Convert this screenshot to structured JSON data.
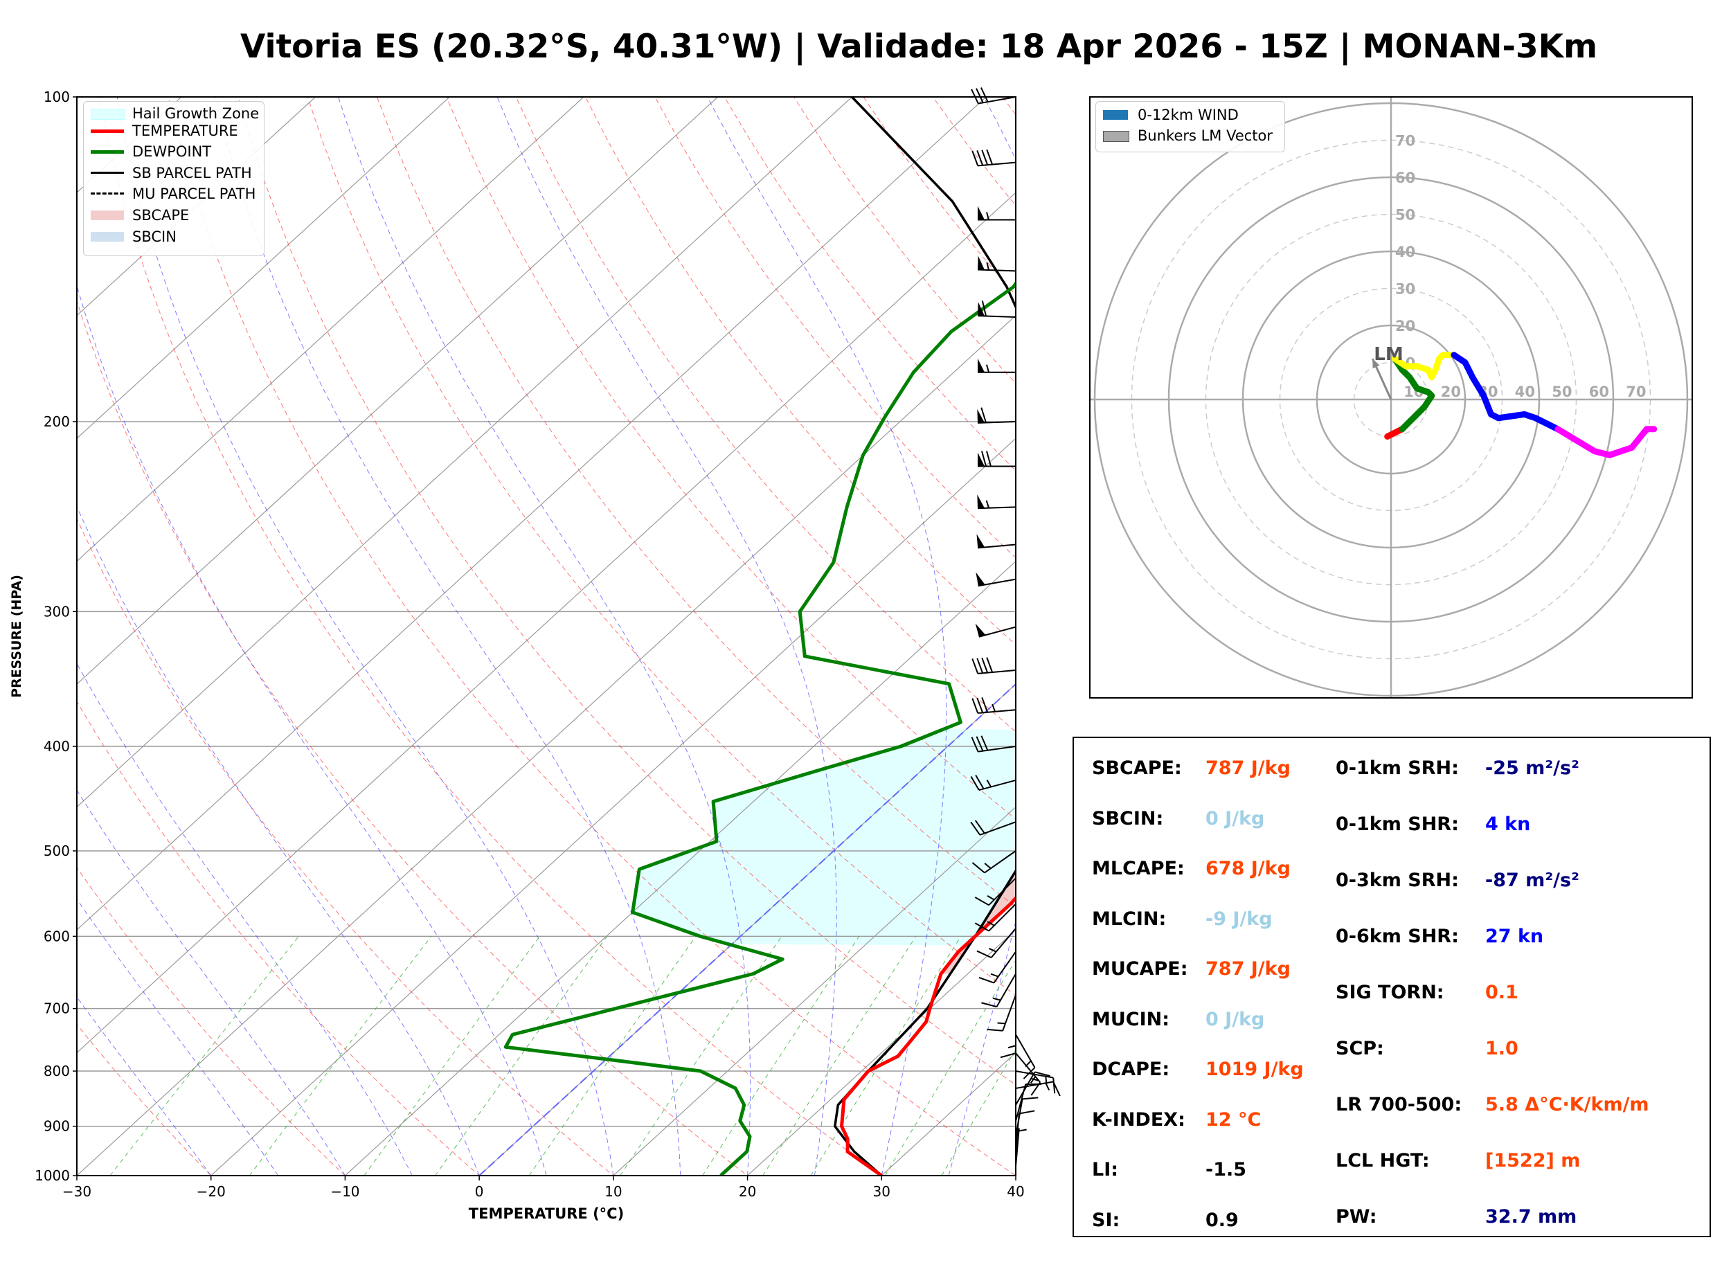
{
  "title": "Vitoria ES (20.32°S, 40.31°W) | Validade: 18 Apr 2026 - 15Z | MONAN-3Km",
  "colors": {
    "temperature": "#ff0000",
    "dewpoint": "#008000",
    "parcel": "#000000",
    "sbcape": "#f4cccc",
    "hail": "#e0ffff",
    "dry_adiabat": "#ff4444",
    "moist_adiabat": "#4444ff",
    "mixing_ratio": "#33aa33",
    "isotherm": "#9a9a9a",
    "freezing": "#6666ff",
    "value_orange": "#ff4500",
    "value_lightblue": "#9fd0e6",
    "value_navy": "#000080",
    "value_blue": "#0000ff",
    "value_black": "#000000"
  },
  "chart_data": [
    {
      "type": "line",
      "subtype": "skew-t log-p",
      "xlabel": "TEMPERATURE (°C)",
      "ylabel": "PRESSURE (HPA)",
      "xlim": [
        -30,
        40
      ],
      "ylim": [
        1000,
        100
      ],
      "xticks": [
        -30,
        -20,
        -10,
        0,
        10,
        20,
        30,
        40
      ],
      "xtick_labels": [
        "−30",
        "−20",
        "−10",
        "0",
        "10",
        "20",
        "30",
        "40"
      ],
      "yticks": [
        1000,
        900,
        800,
        700,
        600,
        500,
        400,
        300,
        200,
        100
      ],
      "ytick_labels": [
        "1000",
        "900",
        "800",
        "700",
        "600",
        "500",
        "400",
        "300",
        "200",
        "100"
      ],
      "legend": [
        {
          "label": "Hail Growth Zone",
          "style": "hail"
        },
        {
          "label": "TEMPERATURE",
          "style": "temperature"
        },
        {
          "label": "DEWPOINT",
          "style": "dewpoint"
        },
        {
          "label": "SB PARCEL PATH",
          "style": "parcel"
        },
        {
          "label": "MU PARCEL PATH",
          "style": "mu"
        },
        {
          "label": "SBCAPE",
          "style": "sbcape"
        },
        {
          "label": "SBCIN",
          "style": "sbcin"
        }
      ],
      "temperature": [
        [
          1000,
          30.0
        ],
        [
          950,
          25.5
        ],
        [
          925,
          24.5
        ],
        [
          900,
          23.0
        ],
        [
          850,
          21.0
        ],
        [
          800,
          20.5
        ],
        [
          775,
          21.5
        ],
        [
          750,
          21.2
        ],
        [
          720,
          20.8
        ],
        [
          700,
          20.0
        ],
        [
          650,
          18.0
        ],
        [
          620,
          17.5
        ],
        [
          560,
          17.5
        ],
        [
          520,
          17.0
        ],
        [
          500,
          16.0
        ],
        [
          450,
          14.5
        ],
        [
          420,
          11.0
        ],
        [
          385,
          7.0
        ],
        [
          350,
          4.0
        ],
        [
          300,
          0.5
        ],
        [
          260,
          -3.0
        ],
        [
          220,
          -4.5
        ],
        [
          195,
          -2.5
        ],
        [
          170,
          1.0
        ],
        [
          140,
          3.0
        ],
        [
          115,
          5.0
        ],
        [
          100,
          7.5
        ]
      ],
      "dewpoint": [
        [
          1000,
          18.0
        ],
        [
          950,
          18.0
        ],
        [
          920,
          17.0
        ],
        [
          890,
          15.0
        ],
        [
          860,
          14.0
        ],
        [
          830,
          12.0
        ],
        [
          800,
          8.0
        ],
        [
          780,
          0.0
        ],
        [
          760,
          -8.5
        ],
        [
          740,
          -9.0
        ],
        [
          650,
          4.0
        ],
        [
          630,
          5.0
        ],
        [
          600,
          -3.0
        ],
        [
          570,
          -10.0
        ],
        [
          520,
          -13.0
        ],
        [
          490,
          -9.5
        ],
        [
          450,
          -13.0
        ],
        [
          420,
          -7.5
        ],
        [
          400,
          -3.5
        ],
        [
          380,
          -1.0
        ],
        [
          350,
          -5.0
        ],
        [
          330,
          -18.0
        ],
        [
          300,
          -22.0
        ],
        [
          270,
          -23.5
        ],
        [
          240,
          -27.0
        ],
        [
          215,
          -30.0
        ],
        [
          198,
          -31.5
        ],
        [
          180,
          -33.0
        ],
        [
          165,
          -33.5
        ],
        [
          150,
          -32.5
        ],
        [
          135,
          -34.0
        ],
        [
          120,
          -30.0
        ],
        [
          100,
          -15.0
        ]
      ],
      "sb_parcel": [
        [
          1000,
          30.0
        ],
        [
          950,
          26.0
        ],
        [
          900,
          22.5
        ],
        [
          860,
          21.0
        ],
        [
          800,
          20.5
        ],
        [
          700,
          19.8
        ],
        [
          600,
          17.5
        ],
        [
          500,
          14.5
        ],
        [
          450,
          12.0
        ],
        [
          400,
          8.5
        ],
        [
          350,
          4.5
        ],
        [
          300,
          -0.5
        ],
        [
          270,
          -4.0
        ],
        [
          250,
          -7.0
        ],
        [
          200,
          -17.5
        ],
        [
          150,
          -33.0
        ],
        [
          125,
          -44.0
        ],
        [
          100,
          -60.0
        ]
      ],
      "sbcape_region": {
        "bottom_hpa": 650,
        "top_hpa": 250
      },
      "hail_growth_zone": {
        "bottom_hpa": 612,
        "top_hpa": 385
      },
      "wind_barbs": [
        {
          "p": 100,
          "dir": 260,
          "spd": 30
        },
        {
          "p": 115,
          "dir": 265,
          "spd": 40
        },
        {
          "p": 130,
          "dir": 270,
          "spd": 55
        },
        {
          "p": 145,
          "dir": 272,
          "spd": 55
        },
        {
          "p": 160,
          "dir": 272,
          "spd": 60
        },
        {
          "p": 180,
          "dir": 270,
          "spd": 55
        },
        {
          "p": 200,
          "dir": 268,
          "spd": 60
        },
        {
          "p": 220,
          "dir": 270,
          "spd": 70
        },
        {
          "p": 240,
          "dir": 268,
          "spd": 55
        },
        {
          "p": 260,
          "dir": 265,
          "spd": 50
        },
        {
          "p": 280,
          "dir": 260,
          "spd": 50
        },
        {
          "p": 310,
          "dir": 255,
          "spd": 50
        },
        {
          "p": 340,
          "dir": 265,
          "spd": 40
        },
        {
          "p": 370,
          "dir": 265,
          "spd": 35
        },
        {
          "p": 400,
          "dir": 262,
          "spd": 30
        },
        {
          "p": 430,
          "dir": 255,
          "spd": 25
        },
        {
          "p": 470,
          "dir": 250,
          "spd": 20
        },
        {
          "p": 500,
          "dir": 235,
          "spd": 15
        },
        {
          "p": 530,
          "dir": 225,
          "spd": 15
        },
        {
          "p": 560,
          "dir": 225,
          "spd": 15
        },
        {
          "p": 590,
          "dir": 220,
          "spd": 15
        },
        {
          "p": 620,
          "dir": 215,
          "spd": 15
        },
        {
          "p": 650,
          "dir": 210,
          "spd": 15
        },
        {
          "p": 680,
          "dir": 200,
          "spd": 15
        },
        {
          "p": 710,
          "dir": 180,
          "spd": 15
        },
        {
          "p": 740,
          "dir": 150,
          "spd": 15
        },
        {
          "p": 770,
          "dir": 140,
          "spd": 15
        },
        {
          "p": 800,
          "dir": 100,
          "spd": 15
        },
        {
          "p": 830,
          "dir": 80,
          "spd": 15
        },
        {
          "p": 860,
          "dir": 30,
          "spd": 15
        },
        {
          "p": 890,
          "dir": 15,
          "spd": 10
        },
        {
          "p": 920,
          "dir": 10,
          "spd": 10
        },
        {
          "p": 950,
          "dir": 5,
          "spd": 10
        },
        {
          "p": 980,
          "dir": 5,
          "spd": 5
        }
      ]
    },
    {
      "type": "line",
      "subtype": "hodograph",
      "rmax": 80,
      "ring_labels": [
        "10",
        "20",
        "30",
        "40",
        "50",
        "60",
        "70"
      ],
      "legend": [
        {
          "label": "0-12km WIND"
        },
        {
          "label": "Bunkers LM Vector"
        }
      ],
      "lm_vector": {
        "u": -5,
        "v": 11,
        "label": "LM"
      },
      "segments": [
        {
          "name": "0-1km",
          "color": "#ff0000",
          "points": [
            [
              -1,
              -10
            ],
            [
              1,
              -9
            ],
            [
              3,
              -8
            ]
          ]
        },
        {
          "name": "1-3km",
          "color": "#008000",
          "points": [
            [
              3,
              -8
            ],
            [
              6,
              -5
            ],
            [
              9,
              -2
            ],
            [
              11,
              1
            ],
            [
              10,
              2
            ],
            [
              7,
              3
            ],
            [
              5,
              6
            ],
            [
              3,
              8
            ],
            [
              1,
              11
            ]
          ]
        },
        {
          "name": "3-6km",
          "color": "#ffff00",
          "points": [
            [
              1,
              11
            ],
            [
              4,
              9
            ],
            [
              7,
              9
            ],
            [
              10,
              8
            ],
            [
              11,
              6
            ],
            [
              12,
              8
            ],
            [
              13,
              11
            ],
            [
              14,
              12
            ],
            [
              17,
              12
            ]
          ]
        },
        {
          "name": "6-9km",
          "color": "#0000ff",
          "points": [
            [
              17,
              12
            ],
            [
              20,
              10
            ],
            [
              22,
              6
            ],
            [
              25,
              1
            ],
            [
              27,
              -4
            ],
            [
              29,
              -5
            ],
            [
              36,
              -4
            ],
            [
              39,
              -5
            ],
            [
              45,
              -8
            ]
          ]
        },
        {
          "name": "9-12km",
          "color": "#ff00ff",
          "points": [
            [
              45,
              -8
            ],
            [
              50,
              -11
            ],
            [
              55,
              -14
            ],
            [
              59,
              -15
            ],
            [
              65,
              -13
            ],
            [
              69,
              -8
            ],
            [
              71,
              -8
            ]
          ]
        }
      ]
    }
  ],
  "params": {
    "left": [
      {
        "label": "SBCAPE:",
        "value": "787 J/kg",
        "color": "#ff4500"
      },
      {
        "label": "SBCIN:",
        "value": "0 J/kg",
        "color": "#9fd0e6"
      },
      {
        "label": "MLCAPE:",
        "value": "678 J/kg",
        "color": "#ff4500"
      },
      {
        "label": "MLCIN:",
        "value": "-9 J/kg",
        "color": "#9fd0e6"
      },
      {
        "label": "MUCAPE:",
        "value": "787 J/kg",
        "color": "#ff4500"
      },
      {
        "label": "MUCIN:",
        "value": "0 J/kg",
        "color": "#9fd0e6"
      },
      {
        "label": "DCAPE:",
        "value": "1019 J/kg",
        "color": "#ff4500"
      },
      {
        "label": "K-INDEX:",
        "value": "12 °C",
        "color": "#ff4500"
      },
      {
        "label": "LI:",
        "value": "-1.5",
        "color": "#000000"
      },
      {
        "label": "SI:",
        "value": "0.9",
        "color": "#000000"
      }
    ],
    "right": [
      {
        "label": "0-1km SRH:",
        "value": "-25 m²/s²",
        "color": "#000080"
      },
      {
        "label": "0-1km SHR:",
        "value": "4 kn",
        "color": "#0000ff"
      },
      {
        "label": "0-3km SRH:",
        "value": "-87 m²/s²",
        "color": "#000080"
      },
      {
        "label": "0-6km SHR:",
        "value": "27 kn",
        "color": "#0000ff"
      },
      {
        "label": "SIG TORN:",
        "value": "0.1",
        "color": "#ff4500"
      },
      {
        "label": "SCP:",
        "value": "1.0",
        "color": "#ff4500"
      },
      {
        "label": "LR 700-500:",
        "value": "5.8 Δ°C·K/km/m",
        "color": "#ff4500"
      },
      {
        "label": "LCL HGT:",
        "value": "[1522] m",
        "color": "#ff4500"
      },
      {
        "label": "PW:",
        "value": "32.7 mm",
        "color": "#000080"
      }
    ]
  }
}
